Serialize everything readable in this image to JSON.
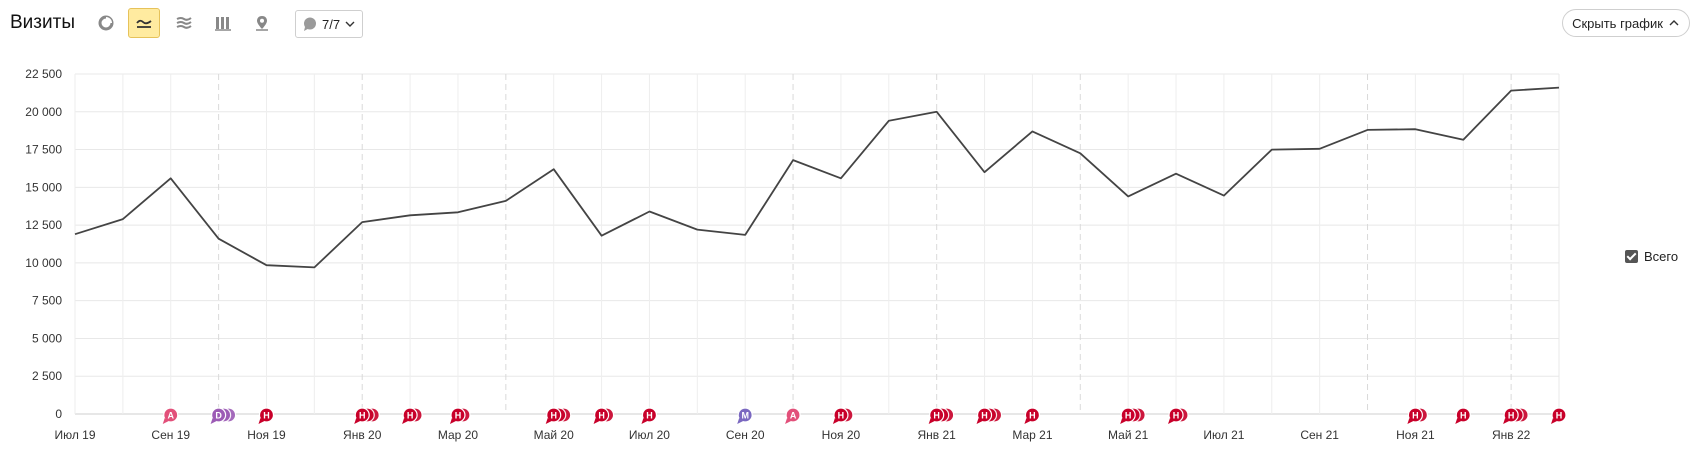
{
  "toolbar": {
    "title": "Визиты",
    "tools": [
      {
        "icon": "pie-chart-icon",
        "active": false
      },
      {
        "icon": "line-chart-icon",
        "active": true
      },
      {
        "icon": "stacked-area-icon",
        "active": false
      },
      {
        "icon": "bar-chart-icon",
        "active": false
      },
      {
        "icon": "map-pin-icon",
        "active": false
      }
    ],
    "notes_count": "7/7",
    "hide_chart_label": "Скрыть график"
  },
  "legend": {
    "label": "Всего",
    "checked": true
  },
  "colors": {
    "line": "#444444",
    "note_h": "#c8002a",
    "note_a": "#e2507a",
    "note_d": "#9c5bb5",
    "note_m": "#7a68c0"
  },
  "chart_data": {
    "type": "line",
    "title": "",
    "xlabel": "",
    "ylabel": "",
    "ylim": [
      0,
      22500
    ],
    "yticks": [
      0,
      2500,
      5000,
      7500,
      10000,
      12500,
      15000,
      17500,
      20000,
      22500
    ],
    "ytick_labels": [
      "0",
      "2 500",
      "5 000",
      "7 500",
      "10 000",
      "12 500",
      "15 000",
      "17 500",
      "20 000",
      "22 500"
    ],
    "x": [
      "2019-07",
      "2019-08",
      "2019-09",
      "2019-10",
      "2019-11",
      "2019-12",
      "2020-01",
      "2020-02",
      "2020-03",
      "2020-04",
      "2020-05",
      "2020-06",
      "2020-07",
      "2020-08",
      "2020-09",
      "2020-10",
      "2020-11",
      "2020-12",
      "2021-01",
      "2021-02",
      "2021-03",
      "2021-04",
      "2021-05",
      "2021-06",
      "2021-07",
      "2021-08",
      "2021-09",
      "2021-10",
      "2021-11",
      "2021-12",
      "2022-01",
      "2022-02"
    ],
    "x_tick_labels": [
      "Июл 19",
      "Сен 19",
      "Ноя 19",
      "Янв 20",
      "Мар 20",
      "Май 20",
      "Июл 20",
      "Сен 20",
      "Ноя 20",
      "Янв 21",
      "Мар 21",
      "Май 21",
      "Июл 21",
      "Сен 21",
      "Ноя 21",
      "Янв 22"
    ],
    "series": [
      {
        "name": "Всего",
        "values": [
          11900,
          12900,
          15600,
          11600,
          9850,
          9700,
          12700,
          13150,
          13350,
          14100,
          16200,
          11800,
          13400,
          12200,
          11850,
          16800,
          15600,
          19400,
          20000,
          16000,
          18700,
          17250,
          14400,
          15900,
          14450,
          17500,
          17550,
          18800,
          18850,
          18150,
          21400,
          21600
        ]
      }
    ],
    "notes": [
      {
        "x": "2019-09",
        "letter": "А",
        "type": "a",
        "stack": 1
      },
      {
        "x": "2019-10",
        "letter": "D",
        "type": "d",
        "stack": 3
      },
      {
        "x": "2019-11",
        "letter": "Н",
        "type": "h",
        "stack": 1
      },
      {
        "x": "2020-01",
        "letter": "Н",
        "type": "h",
        "stack": 3
      },
      {
        "x": "2020-02",
        "letter": "Н",
        "type": "h",
        "stack": 2
      },
      {
        "x": "2020-03",
        "letter": "Н",
        "type": "h",
        "stack": 2
      },
      {
        "x": "2020-05",
        "letter": "Н",
        "type": "h",
        "stack": 3
      },
      {
        "x": "2020-06",
        "letter": "Н",
        "type": "h",
        "stack": 2
      },
      {
        "x": "2020-07",
        "letter": "Н",
        "type": "h",
        "stack": 1
      },
      {
        "x": "2020-09",
        "letter": "М",
        "type": "m",
        "stack": 1
      },
      {
        "x": "2020-10",
        "letter": "А",
        "type": "a",
        "stack": 1
      },
      {
        "x": "2020-11",
        "letter": "Н",
        "type": "h",
        "stack": 2
      },
      {
        "x": "2021-01",
        "letter": "Н",
        "type": "h",
        "stack": 3
      },
      {
        "x": "2021-02",
        "letter": "Н",
        "type": "h",
        "stack": 3
      },
      {
        "x": "2021-03",
        "letter": "Н",
        "type": "h",
        "stack": 1
      },
      {
        "x": "2021-05",
        "letter": "Н",
        "type": "h",
        "stack": 3
      },
      {
        "x": "2021-06",
        "letter": "Н",
        "type": "h",
        "stack": 2
      },
      {
        "x": "2021-11",
        "letter": "Н",
        "type": "h",
        "stack": 2
      },
      {
        "x": "2021-12",
        "letter": "Н",
        "type": "h",
        "stack": 1
      },
      {
        "x": "2022-01",
        "letter": "Н",
        "type": "h",
        "stack": 3
      },
      {
        "x": "2022-02",
        "letter": "Н",
        "type": "h",
        "stack": 1
      }
    ],
    "grid": true,
    "legend_position": "right"
  }
}
